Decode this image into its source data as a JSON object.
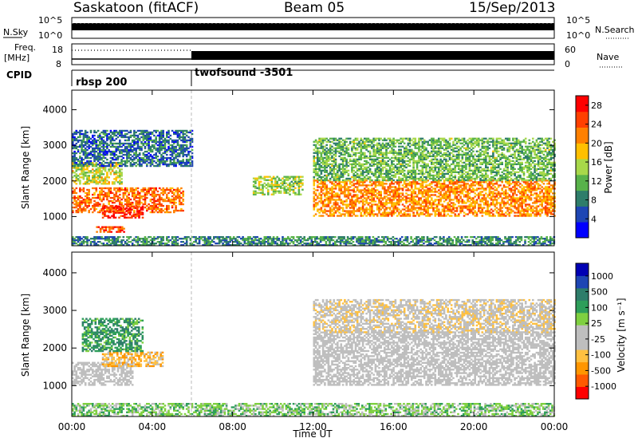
{
  "header": {
    "title": "Saskatoon (fitACF)",
    "beam": "Beam 05",
    "date": "15/Sep/2013"
  },
  "top_panels": {
    "nsky_label": "N.Sky",
    "nsky_ticks": [
      "10^5",
      "10^0"
    ],
    "nsearch_label": "N.Search",
    "nsearch_ticks": [
      "10^5",
      "10^0"
    ],
    "freq_label_line1": "Freq.",
    "freq_label_line2": "[MHz]",
    "freq_ticks": [
      "18",
      "8"
    ],
    "nave_label": "Nave",
    "nave_ticks": [
      "60",
      "0"
    ],
    "cpid_label": "CPID",
    "programs": [
      {
        "name": "rbsp 200",
        "start_hour": 0,
        "end_hour": 6
      },
      {
        "name": "twofsound -3501",
        "start_hour": 6,
        "end_hour": 24
      }
    ]
  },
  "colors": {
    "power_scale": [
      "#0000ff",
      "#1e46b4",
      "#2e7d6a",
      "#58b24a",
      "#a8d84a",
      "#ffc000",
      "#ff8000",
      "#ff4000",
      "#ff0000"
    ],
    "velocity_scale": [
      "#ff0000",
      "#ff5a00",
      "#ff9600",
      "#ffc040",
      "#bebebe",
      "#bebebe",
      "#7fd040",
      "#2e9e5a",
      "#2e7d6a",
      "#1e46b4",
      "#0000b4"
    ]
  },
  "chart_data": [
    {
      "type": "heatmap",
      "title": "",
      "xlabel": "Time UT",
      "ylabel": "Slant Range [km]",
      "xlim": [
        0,
        24
      ],
      "ylim": [
        180,
        4550
      ],
      "x_ticks": [
        "00:00",
        "04:00",
        "08:00",
        "12:00",
        "16:00",
        "20:00",
        "00:00"
      ],
      "y_ticks": [
        1000,
        2000,
        3000,
        4000
      ],
      "colorbar_label": "Power [dB]",
      "colorbar_ticks": [
        4,
        8,
        12,
        16,
        20,
        24,
        28
      ],
      "colorbar_range": [
        0,
        30
      ],
      "grid": false,
      "echo_regions": [
        {
          "t0": 0.0,
          "t1": 5.5,
          "r0": 1100,
          "r1": 1800,
          "level": 24
        },
        {
          "t0": 1.5,
          "t1": 3.5,
          "r0": 950,
          "r1": 1300,
          "level": 28
        },
        {
          "t0": 0.0,
          "t1": 2.5,
          "r0": 1900,
          "r1": 2500,
          "level": 16
        },
        {
          "t0": 0.0,
          "t1": 6.0,
          "r0": 2400,
          "r1": 3400,
          "level": 6
        },
        {
          "t0": 1.2,
          "t1": 2.6,
          "r0": 550,
          "r1": 700,
          "level": 26
        },
        {
          "t0": 9.0,
          "t1": 11.5,
          "r0": 1600,
          "r1": 2100,
          "level": 14
        },
        {
          "t0": 12.0,
          "t1": 24.0,
          "r0": 1000,
          "r1": 2000,
          "level": 22
        },
        {
          "t0": 12.0,
          "t1": 24.0,
          "r0": 2000,
          "r1": 3200,
          "level": 12
        },
        {
          "t0": 0.0,
          "t1": 24.0,
          "r0": 180,
          "r1": 450,
          "level": 8
        }
      ]
    },
    {
      "type": "heatmap",
      "title": "",
      "xlabel": "Time UT",
      "ylabel": "Slant Range [km]",
      "xlim": [
        0,
        24
      ],
      "ylim": [
        180,
        4550
      ],
      "x_ticks": [
        "00:00",
        "04:00",
        "08:00",
        "12:00",
        "16:00",
        "20:00",
        "00:00"
      ],
      "y_ticks": [
        1000,
        2000,
        3000,
        4000
      ],
      "colorbar_label": "Velocity [m s⁻¹]",
      "colorbar_ticks": [
        "1000",
        "500",
        "100",
        "25",
        "-25",
        "-100",
        "-500",
        "-1000"
      ],
      "grid": false,
      "echo_regions": [
        {
          "t0": 0.0,
          "t1": 3.0,
          "r0": 1000,
          "r1": 1600,
          "level": 0
        },
        {
          "t0": 1.5,
          "t1": 4.5,
          "r0": 1500,
          "r1": 1900,
          "level": -400
        },
        {
          "t0": 0.5,
          "t1": 3.5,
          "r0": 1900,
          "r1": 2800,
          "level": 450
        },
        {
          "t0": 12.0,
          "t1": 24.0,
          "r0": 1000,
          "r1": 2400,
          "level": 0
        },
        {
          "t0": 12.0,
          "t1": 24.0,
          "r0": 2400,
          "r1": 3300,
          "level": -200
        },
        {
          "t0": 0.0,
          "t1": 24.0,
          "r0": 180,
          "r1": 500,
          "level": 200
        }
      ]
    }
  ]
}
